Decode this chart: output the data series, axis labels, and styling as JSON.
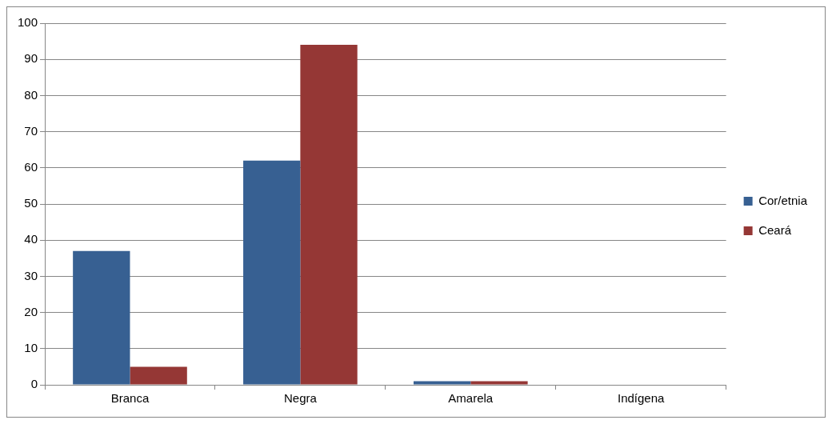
{
  "chart_data": {
    "type": "bar",
    "categories": [
      "Branca",
      "Negra",
      "Amarela",
      "Indígena"
    ],
    "series": [
      {
        "name": "Cor/etnia",
        "color": "#376092",
        "values": [
          37,
          62,
          1,
          0
        ]
      },
      {
        "name": "Ceará",
        "color": "#953735",
        "values": [
          5,
          94,
          1,
          0
        ]
      }
    ],
    "ylim": [
      0,
      100
    ],
    "yticks": [
      0,
      10,
      20,
      30,
      40,
      50,
      60,
      70,
      80,
      90,
      100
    ],
    "grid": "y",
    "legend": "right"
  }
}
